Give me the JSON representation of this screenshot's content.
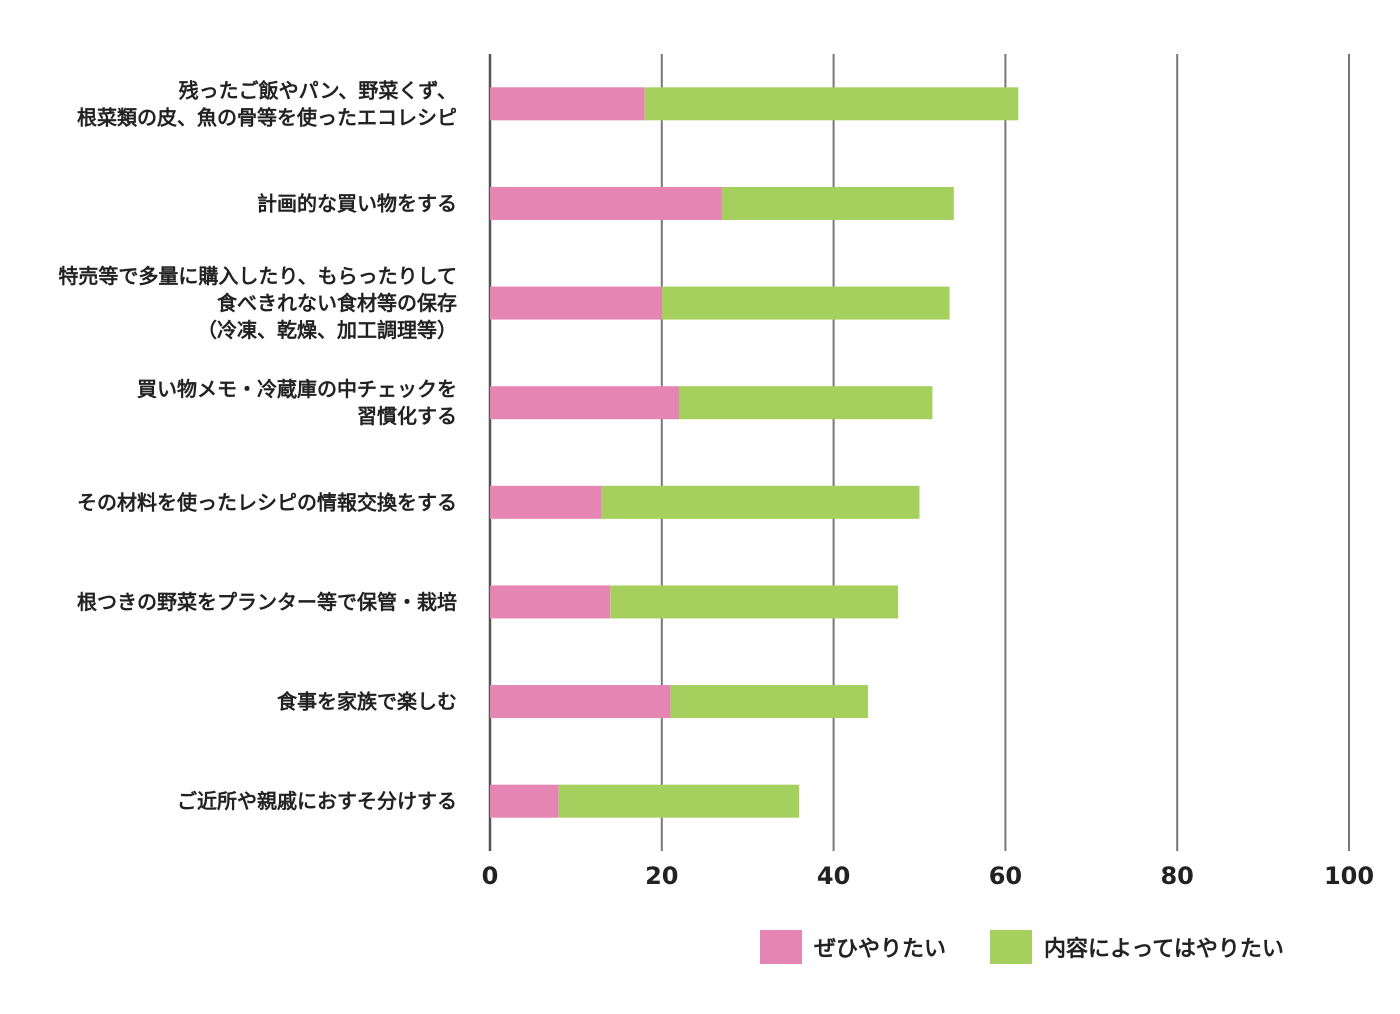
{
  "chart_data": {
    "type": "bar",
    "orientation": "horizontal",
    "stacked": true,
    "categories": [
      [
        "残ったご飯やパン、野菜くず、",
        "根菜類の皮、魚の骨等を使ったエコレシピ"
      ],
      [
        "計画的な買い物をする"
      ],
      [
        "特売等で多量に購入したり、もらったりして",
        "食べきれない食材等の保存",
        "（冷凍、乾燥、加工調理等）"
      ],
      [
        "買い物メモ・冷蔵庫の中チェックを",
        "習慣化する"
      ],
      [
        "その材料を使ったレシピの情報交換をする"
      ],
      [
        "根つきの野菜をプランター等で保管・栽培"
      ],
      [
        "食事を家族で楽しむ"
      ],
      [
        "ご近所や親戚におすそ分けする"
      ]
    ],
    "series": [
      {
        "name": "ぜひやりたい",
        "color": "#e585b3",
        "values": [
          18,
          27,
          20,
          22,
          13,
          14,
          21,
          8
        ]
      },
      {
        "name": "内容によってはやりたい",
        "color": "#a6d05e",
        "values": [
          43.5,
          27,
          33.5,
          29.5,
          37,
          33.5,
          23,
          28
        ]
      }
    ],
    "xlim": [
      0,
      100
    ],
    "xticks": [
      "0",
      "20",
      "40",
      "60",
      "80",
      "100"
    ],
    "grid": true,
    "legend_position": "bottom-right",
    "title": "",
    "xlabel": "",
    "ylabel": ""
  }
}
